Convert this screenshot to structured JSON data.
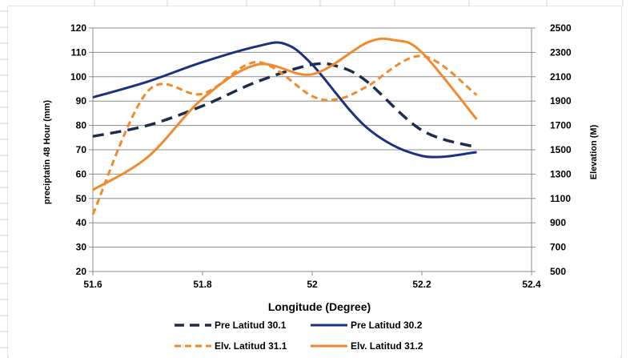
{
  "chart_data": {
    "type": "line",
    "xlabel": "Longitude (Degree)",
    "ylabel": "preciptatin 48 Hour (mm)",
    "y2label": "Elevation (M)",
    "xlim": [
      51.6,
      52.4
    ],
    "ylim": [
      20,
      120
    ],
    "y2lim": [
      500,
      2500
    ],
    "x_ticks": [
      "51.6",
      "51.8",
      "52",
      "52.2",
      "52.4"
    ],
    "y_ticks": [
      "20",
      "30",
      "40",
      "50",
      "60",
      "70",
      "80",
      "90",
      "100",
      "110",
      "120"
    ],
    "y2_ticks": [
      "500",
      "700",
      "900",
      "1100",
      "1300",
      "1500",
      "1700",
      "1900",
      "2100",
      "2300",
      "2500"
    ],
    "grid": "horizontal",
    "legend_position": "bottom",
    "series": [
      {
        "name": "Pre  Latitud 30.1",
        "axis": "left",
        "style": "dashed",
        "color": "#1f2d4d",
        "x": [
          51.6,
          51.7,
          51.8,
          51.9,
          52.0,
          52.05,
          52.1,
          52.2,
          52.3
        ],
        "y": [
          75.5,
          80,
          88,
          98,
          105,
          104,
          98,
          78,
          71
        ]
      },
      {
        "name": "Pre  Latitud 30.2",
        "axis": "left",
        "style": "solid",
        "color": "#1f3080",
        "x": [
          51.6,
          51.7,
          51.8,
          51.9,
          51.95,
          52.0,
          52.1,
          52.2,
          52.3
        ],
        "y": [
          91.5,
          98,
          106,
          112.5,
          113.5,
          105,
          79,
          67.5,
          69
        ]
      },
      {
        "name": "Elv.  Latitud 31.1",
        "axis": "right",
        "style": "dashed",
        "color": "#f08a2c",
        "x": [
          51.6,
          51.7,
          51.8,
          51.9,
          52.0,
          52.05,
          52.1,
          52.2,
          52.3
        ],
        "y": [
          970,
          1980,
          1960,
          2220,
          1940,
          1920,
          2020,
          2270,
          1950
        ]
      },
      {
        "name": "Elv.  Latitud 31.2",
        "axis": "right",
        "style": "solid",
        "color": "#f08a2c",
        "x": [
          51.6,
          51.7,
          51.8,
          51.9,
          52.0,
          52.1,
          52.15,
          52.2,
          52.3
        ],
        "y": [
          1170,
          1440,
          1920,
          2200,
          2120,
          2380,
          2400,
          2300,
          1750
        ]
      }
    ]
  }
}
